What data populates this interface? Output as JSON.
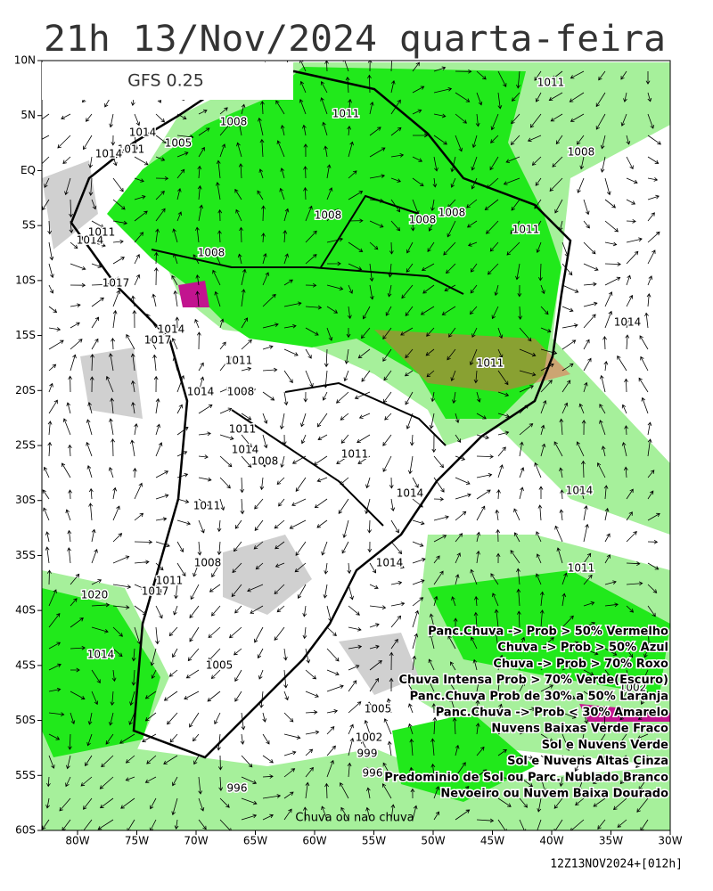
{
  "header": {
    "title": "21h 13/Nov/2024 quarta-feira",
    "model": "GFS 0.25"
  },
  "latitude_labels": [
    "10N",
    "5N",
    "EQ",
    "5S",
    "10S",
    "15S",
    "20S",
    "25S",
    "30S",
    "35S",
    "40S",
    "45S",
    "50S",
    "55S",
    "60S"
  ],
  "longitude_labels": [
    "80W",
    "75W",
    "70W",
    "65W",
    "60W",
    "55W",
    "50W",
    "45W",
    "40W",
    "35W",
    "30W"
  ],
  "isobar_labels": [
    "1011",
    "1008",
    "1014",
    "1011",
    "1014",
    "1005",
    "1011",
    "1008",
    "1008",
    "1008",
    "1008",
    "1014",
    "1008",
    "1011",
    "1017",
    "1017",
    "1014",
    "1011",
    "1011",
    "1014",
    "1011",
    "1014",
    "1008",
    "1011",
    "1014",
    "1014",
    "1014",
    "1011",
    "1014",
    "1008",
    "1011",
    "1020",
    "1017",
    "1011",
    "1011",
    "1014",
    "1008",
    "1005",
    "1002",
    "1005",
    "1002",
    "999",
    "996",
    "996"
  ],
  "legend": [
    "Panc.Chuva -> Prob > 50% Vermelho",
    "Chuva -> Prob > 50% Azul",
    "Chuva -> Prob > 70% Roxo",
    "Chuva Intensa Prob > 70% Verde(Escuro)",
    "Panc.Chuva Prob de 30% a 50% Laranja",
    "Panc.Chuva -> Prob < 30% Amarelo",
    "Nuvens Baixas Verde Fraco",
    "Sol e Nuvens Verde",
    "Sol e Nuvens Altas Cinza",
    "Predominio de Sol ou Parc. Nublado Branco",
    "Nevoeiro ou Nuvem Baixa Dourado"
  ],
  "footer": {
    "caption": "Chuva ou nao chuva",
    "run": "12Z13NOV2024+[012h]"
  }
}
